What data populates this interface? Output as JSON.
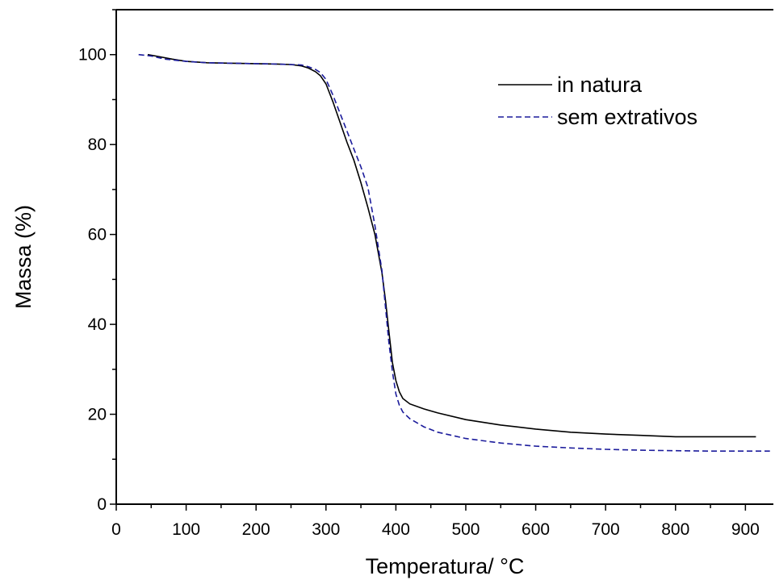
{
  "chart_data": {
    "type": "line",
    "xlabel": "Temperatura/ °C",
    "ylabel": "Massa (%)",
    "xlim": [
      0,
      940
    ],
    "ylim": [
      0,
      110
    ],
    "x_ticks": [
      0,
      100,
      200,
      300,
      400,
      500,
      600,
      700,
      800,
      900
    ],
    "y_ticks": [
      0,
      20,
      40,
      60,
      80,
      100
    ],
    "legend_position": "top-right",
    "grid": false,
    "series": [
      {
        "name": "in natura",
        "color": "#000000",
        "dash": "solid",
        "x": [
          45,
          60,
          80,
          100,
          130,
          160,
          200,
          230,
          250,
          265,
          275,
          285,
          292,
          300,
          310,
          320,
          330,
          340,
          350,
          360,
          370,
          380,
          385,
          390,
          395,
          400,
          405,
          410,
          420,
          440,
          460,
          500,
          550,
          600,
          650,
          700,
          750,
          800,
          850,
          915
        ],
        "y": [
          100,
          99.6,
          99,
          98.5,
          98.2,
          98.1,
          98,
          97.9,
          97.8,
          97.5,
          97,
          96.2,
          95.3,
          93.5,
          89.5,
          85,
          80.5,
          76.5,
          71.5,
          66,
          60,
          51.5,
          45.5,
          38.5,
          31.5,
          27.5,
          25,
          23.5,
          22.3,
          21.2,
          20.3,
          18.8,
          17.6,
          16.7,
          16,
          15.6,
          15.3,
          15,
          15,
          15
        ]
      },
      {
        "name": "sem extrativos",
        "color": "#1c1c9c",
        "dash": "dashed",
        "x": [
          32,
          50,
          70,
          100,
          130,
          160,
          200,
          230,
          250,
          265,
          275,
          285,
          292,
          300,
          310,
          320,
          330,
          340,
          350,
          360,
          370,
          380,
          385,
          390,
          395,
          400,
          405,
          410,
          420,
          440,
          460,
          500,
          550,
          600,
          650,
          700,
          750,
          800,
          850,
          935
        ],
        "y": [
          100,
          99.7,
          99,
          98.5,
          98.2,
          98.1,
          98,
          97.9,
          97.8,
          97.7,
          97.3,
          96.7,
          96,
          94.5,
          91,
          87,
          83,
          79,
          75,
          70.5,
          62,
          52,
          44,
          36,
          29.5,
          24.5,
          22,
          20.5,
          19,
          17.2,
          16,
          14.6,
          13.6,
          12.9,
          12.5,
          12.2,
          12,
          11.9,
          11.8,
          11.8
        ]
      }
    ]
  }
}
